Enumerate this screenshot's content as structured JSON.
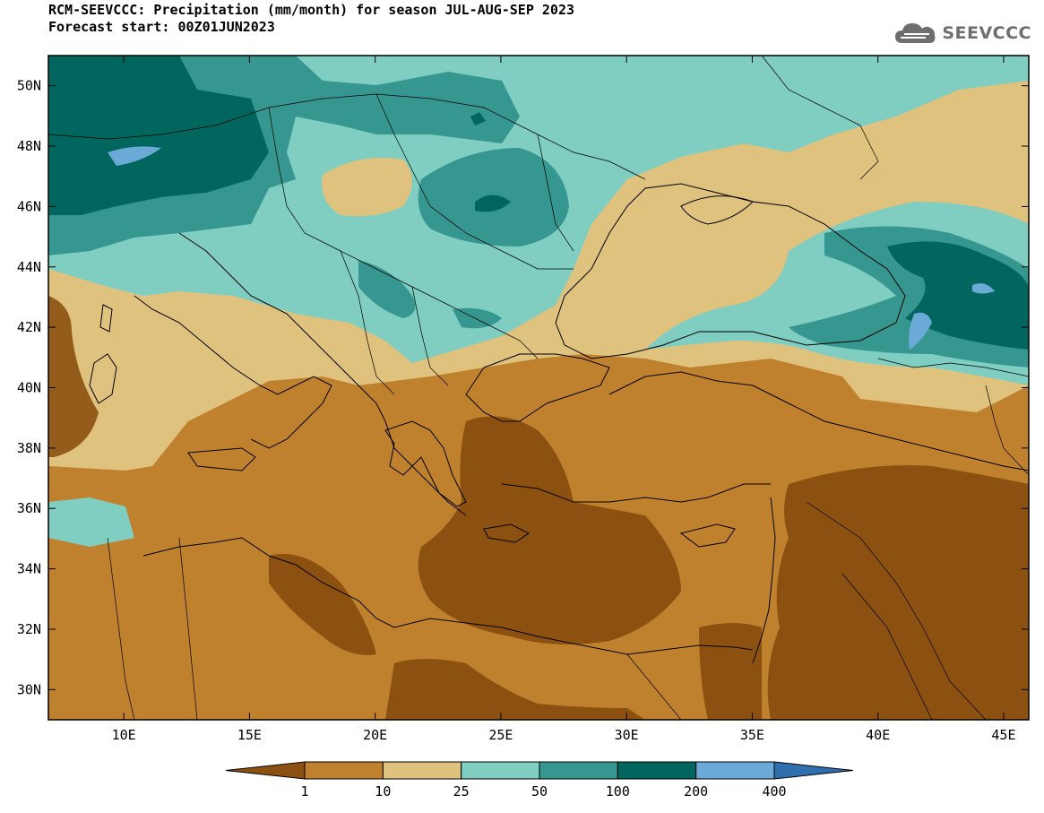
{
  "title_line1": "RCM-SEEVCCC: Precipitation (mm/month) for season JUL-AUG-SEP 2023",
  "title_line2": "Forecast start: 00Z01JUN2023",
  "logo_text": "SEEVCCC",
  "map": {
    "projection": "lat-lon",
    "lon_range": [
      7,
      46
    ],
    "lat_range": [
      29,
      51
    ],
    "lon_ticks": [
      10,
      15,
      20,
      25,
      30,
      35,
      40,
      45
    ],
    "lon_tick_labels": [
      "10E",
      "15E",
      "20E",
      "25E",
      "30E",
      "35E",
      "40E",
      "45E"
    ],
    "lat_ticks": [
      30,
      32,
      34,
      36,
      38,
      40,
      42,
      44,
      46,
      48,
      50
    ],
    "lat_tick_labels": [
      "30N",
      "32N",
      "34N",
      "36N",
      "38N",
      "40N",
      "42N",
      "44N",
      "46N",
      "48N",
      "50N"
    ]
  },
  "legend": {
    "labels": [
      "1",
      "10",
      "25",
      "50",
      "100",
      "200",
      "400"
    ],
    "colors": [
      "#8c5110",
      "#bf812d",
      "#dfc27d",
      "#80cdc1",
      "#35978f",
      "#01665e",
      "#6ba9d6",
      "#2f6fae"
    ]
  }
}
